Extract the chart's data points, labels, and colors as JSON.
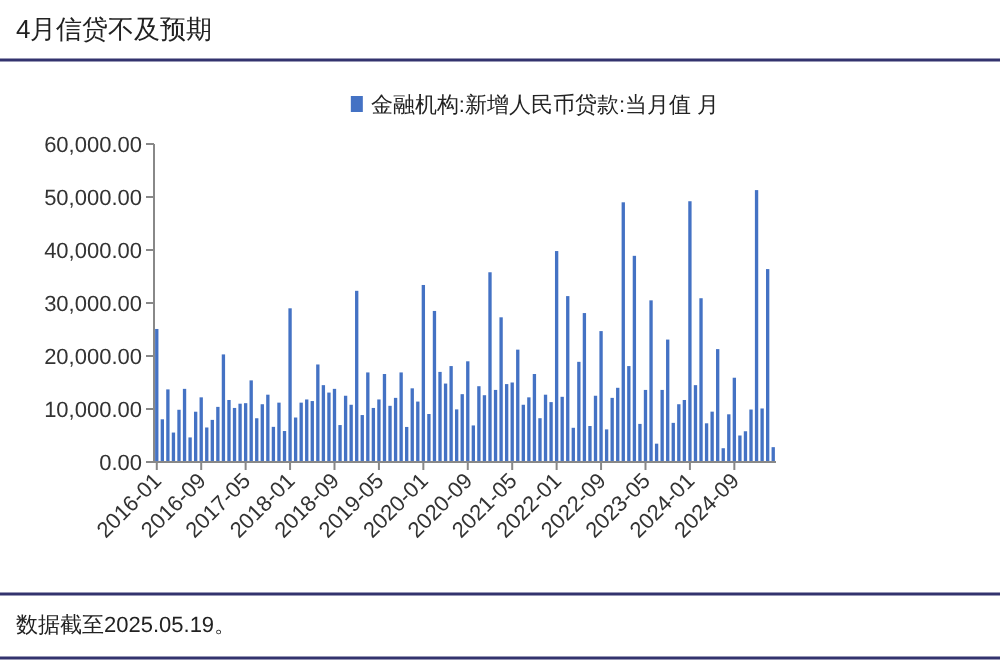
{
  "chart_data": {
    "type": "bar",
    "title": "4月信贷不及预期",
    "categories": [
      "2016-01",
      null,
      null,
      null,
      null,
      null,
      null,
      null,
      "2016-09",
      null,
      null,
      null,
      null,
      null,
      null,
      null,
      "2017-05",
      null,
      null,
      null,
      null,
      null,
      null,
      null,
      "2018-01",
      null,
      null,
      null,
      null,
      null,
      null,
      null,
      "2018-09",
      null,
      null,
      null,
      null,
      null,
      null,
      null,
      "2019-05",
      null,
      null,
      null,
      null,
      null,
      null,
      null,
      "2020-01",
      null,
      null,
      null,
      null,
      null,
      null,
      null,
      "2020-09",
      null,
      null,
      null,
      null,
      null,
      null,
      null,
      "2021-05",
      null,
      null,
      null,
      null,
      null,
      null,
      null,
      "2022-01",
      null,
      null,
      null,
      null,
      null,
      null,
      null,
      "2022-09",
      null,
      null,
      null,
      null,
      null,
      null,
      null,
      "2023-05",
      null,
      null,
      null,
      null,
      null,
      null,
      null,
      "2024-01",
      null,
      null,
      null,
      null,
      null,
      null,
      null,
      "2024-09",
      null,
      null,
      null,
      null,
      null,
      null,
      null
    ],
    "series": [
      {
        "name": "金融机构:新增人民币贷款:当月值 月",
        "color": "#4472c4",
        "values": [
          25100,
          8055,
          13700,
          5556,
          9855,
          13800,
          4636,
          9487,
          12200,
          6513,
          7946,
          10400,
          20300,
          11700,
          10200,
          11000,
          11100,
          15400,
          8255,
          10900,
          12700,
          6632,
          11200,
          5844,
          29000,
          8393,
          11200,
          11800,
          11500,
          18400,
          14500,
          13100,
          13800,
          6970,
          12500,
          10800,
          32300,
          8858,
          16900,
          10200,
          11800,
          16600,
          10600,
          12100,
          16900,
          6613,
          13900,
          11400,
          33400,
          9057,
          28500,
          17000,
          14800,
          18100,
          9927,
          12800,
          19000,
          6898,
          14300,
          12600,
          35800,
          13600,
          27300,
          14700,
          15000,
          21200,
          10800,
          12200,
          16600,
          8262,
          12700,
          11300,
          39800,
          12300,
          31300,
          6454,
          18900,
          28100,
          6790,
          12500,
          24700,
          6152,
          12100,
          14000,
          49000,
          18100,
          38900,
          7188,
          13600,
          30500,
          3459,
          13600,
          23100,
          7384,
          10900,
          11700,
          49200,
          14500,
          30900,
          7300,
          9500,
          21300,
          2600,
          9000,
          15900,
          5000,
          5800,
          9900,
          51300,
          10100,
          36400,
          2800
        ]
      }
    ],
    "ylim": [
      0,
      60000
    ],
    "yticks": [
      {
        "value": 0,
        "label": "0.00"
      },
      {
        "value": 10000,
        "label": "10,000.00"
      },
      {
        "value": 20000,
        "label": "20,000.00"
      },
      {
        "value": 30000,
        "label": "30,000.00"
      },
      {
        "value": 40000,
        "label": "40,000.00"
      },
      {
        "value": 50000,
        "label": "50,000.00"
      },
      {
        "value": 60000,
        "label": "60,000.00"
      }
    ],
    "legend": "top",
    "grid": false,
    "annotations": [
      "数据截至2025.05.19。"
    ]
  }
}
